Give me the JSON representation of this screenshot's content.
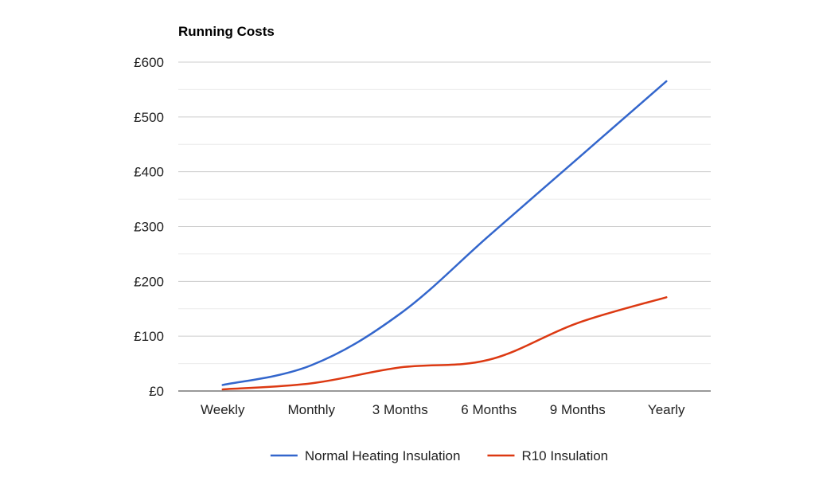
{
  "chart_data": {
    "type": "line",
    "title": "Running Costs",
    "xlabel": "",
    "ylabel": "",
    "categories": [
      "Weekly",
      "Monthly",
      "3 Months",
      "6 Months",
      "9 Months",
      "Yearly"
    ],
    "ylim": [
      0,
      600
    ],
    "y_ticks": [
      0,
      100,
      200,
      300,
      400,
      500,
      600
    ],
    "y_tick_labels": [
      "£0",
      "£100",
      "£200",
      "£300",
      "£400",
      "£500",
      "£600"
    ],
    "grid": true,
    "legend_position": "bottom",
    "smooth": true,
    "series": [
      {
        "name": "Normal Heating Insulation",
        "color": "#3366cc",
        "values": [
          11,
          47,
          141,
          283,
          424,
          565
        ]
      },
      {
        "name": "R10 Insulation",
        "color": "#dc3912",
        "values": [
          3,
          14,
          43,
          57,
          124,
          171
        ]
      }
    ]
  }
}
